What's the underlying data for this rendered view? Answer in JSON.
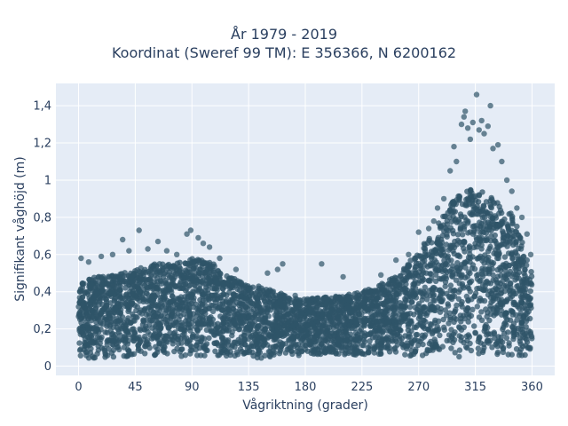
{
  "chart_data": {
    "type": "scatter",
    "title": "År 1979 - 2019",
    "subtitle": "Koordinat (Sweref 99 TM): E 356366, N 6200162",
    "xlabel": "Vågriktning (grader)",
    "ylabel": "Signifikant våghöjd (m)",
    "xlim": [
      -18,
      378
    ],
    "ylim": [
      -0.05,
      1.52
    ],
    "xticks": [
      0,
      45,
      90,
      135,
      180,
      225,
      270,
      315,
      360
    ],
    "xtick_labels": [
      "0",
      "45",
      "90",
      "135",
      "180",
      "225",
      "270",
      "315",
      "360"
    ],
    "yticks": [
      0,
      0.2,
      0.4,
      0.6,
      0.8,
      1.0,
      1.2,
      1.4
    ],
    "ytick_labels": [
      "0",
      "0,2",
      "0,4",
      "0,6",
      "0,8",
      "1",
      "1,2",
      "1,4"
    ],
    "grid": true,
    "marker_color": "#2f5468",
    "background_color": "#e5ecf6",
    "envelope": {
      "direction": [
        0,
        15,
        30,
        45,
        60,
        75,
        90,
        105,
        120,
        135,
        150,
        165,
        180,
        195,
        210,
        225,
        240,
        255,
        270,
        285,
        300,
        315,
        330,
        345,
        360
      ],
      "dense_max_height": [
        0.46,
        0.48,
        0.5,
        0.52,
        0.55,
        0.55,
        0.58,
        0.56,
        0.48,
        0.44,
        0.42,
        0.38,
        0.36,
        0.37,
        0.38,
        0.4,
        0.44,
        0.5,
        0.62,
        0.76,
        0.92,
        0.96,
        0.9,
        0.82,
        0.5
      ],
      "dense_min_height": [
        0.04,
        0.04,
        0.05,
        0.05,
        0.05,
        0.05,
        0.05,
        0.05,
        0.05,
        0.04,
        0.04,
        0.05,
        0.06,
        0.06,
        0.06,
        0.06,
        0.06,
        0.06,
        0.05,
        0.05,
        0.05,
        0.05,
        0.05,
        0.05,
        0.05
      ]
    },
    "outliers": [
      {
        "x": 2,
        "y": 0.58
      },
      {
        "x": 8,
        "y": 0.56
      },
      {
        "x": 18,
        "y": 0.59
      },
      {
        "x": 27,
        "y": 0.6
      },
      {
        "x": 35,
        "y": 0.68
      },
      {
        "x": 40,
        "y": 0.62
      },
      {
        "x": 48,
        "y": 0.73
      },
      {
        "x": 55,
        "y": 0.63
      },
      {
        "x": 63,
        "y": 0.67
      },
      {
        "x": 70,
        "y": 0.62
      },
      {
        "x": 78,
        "y": 0.6
      },
      {
        "x": 86,
        "y": 0.71
      },
      {
        "x": 89,
        "y": 0.73
      },
      {
        "x": 95,
        "y": 0.69
      },
      {
        "x": 99,
        "y": 0.66
      },
      {
        "x": 104,
        "y": 0.64
      },
      {
        "x": 112,
        "y": 0.58
      },
      {
        "x": 125,
        "y": 0.52
      },
      {
        "x": 150,
        "y": 0.5
      },
      {
        "x": 158,
        "y": 0.52
      },
      {
        "x": 162,
        "y": 0.55
      },
      {
        "x": 172,
        "y": 0.38
      },
      {
        "x": 193,
        "y": 0.55
      },
      {
        "x": 210,
        "y": 0.48
      },
      {
        "x": 240,
        "y": 0.49
      },
      {
        "x": 252,
        "y": 0.57
      },
      {
        "x": 262,
        "y": 0.6
      },
      {
        "x": 270,
        "y": 0.72
      },
      {
        "x": 278,
        "y": 0.74
      },
      {
        "x": 282,
        "y": 0.78
      },
      {
        "x": 285,
        "y": 0.85
      },
      {
        "x": 290,
        "y": 0.9
      },
      {
        "x": 295,
        "y": 1.05
      },
      {
        "x": 298,
        "y": 1.18
      },
      {
        "x": 300,
        "y": 1.1
      },
      {
        "x": 304,
        "y": 1.3
      },
      {
        "x": 306,
        "y": 1.34
      },
      {
        "x": 307,
        "y": 1.37
      },
      {
        "x": 309,
        "y": 1.28
      },
      {
        "x": 311,
        "y": 1.22
      },
      {
        "x": 313,
        "y": 1.31
      },
      {
        "x": 316,
        "y": 1.46
      },
      {
        "x": 318,
        "y": 1.27
      },
      {
        "x": 320,
        "y": 1.32
      },
      {
        "x": 322,
        "y": 1.25
      },
      {
        "x": 325,
        "y": 1.29
      },
      {
        "x": 327,
        "y": 1.4
      },
      {
        "x": 329,
        "y": 1.17
      },
      {
        "x": 333,
        "y": 1.19
      },
      {
        "x": 336,
        "y": 1.1
      },
      {
        "x": 340,
        "y": 1.0
      },
      {
        "x": 344,
        "y": 0.94
      },
      {
        "x": 348,
        "y": 0.85
      },
      {
        "x": 352,
        "y": 0.8
      },
      {
        "x": 356,
        "y": 0.71
      },
      {
        "x": 359,
        "y": 0.6
      }
    ]
  }
}
